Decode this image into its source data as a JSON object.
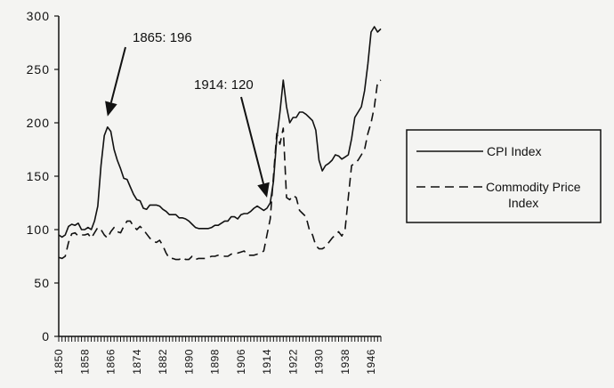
{
  "chart_data": {
    "type": "line",
    "title": "",
    "xlabel": "",
    "ylabel": "",
    "xlim": [
      1850,
      1949
    ],
    "ylim": [
      0,
      300
    ],
    "yticks": [
      0,
      50,
      100,
      150,
      200,
      250,
      300
    ],
    "xticks": [
      1850,
      1858,
      1866,
      1874,
      1882,
      1890,
      1898,
      1906,
      1914,
      1922,
      1930,
      1938,
      1946
    ],
    "grid": false,
    "legend_placement": "right",
    "series": [
      {
        "name": "CPI Index",
        "style": "solid",
        "x": [
          1850,
          1851,
          1852,
          1853,
          1854,
          1855,
          1856,
          1857,
          1858,
          1859,
          1860,
          1861,
          1862,
          1863,
          1864,
          1865,
          1866,
          1867,
          1868,
          1869,
          1870,
          1871,
          1872,
          1873,
          1874,
          1875,
          1876,
          1877,
          1878,
          1879,
          1880,
          1881,
          1882,
          1883,
          1884,
          1885,
          1886,
          1887,
          1888,
          1889,
          1890,
          1891,
          1892,
          1893,
          1894,
          1895,
          1896,
          1897,
          1898,
          1899,
          1900,
          1901,
          1902,
          1903,
          1904,
          1905,
          1906,
          1907,
          1908,
          1909,
          1910,
          1911,
          1912,
          1913,
          1914,
          1915,
          1916,
          1917,
          1918,
          1919,
          1920,
          1921,
          1922,
          1923,
          1924,
          1925,
          1926,
          1927,
          1928,
          1929,
          1930,
          1931,
          1932,
          1933,
          1934,
          1935,
          1936,
          1937,
          1938,
          1939,
          1940,
          1941,
          1942,
          1943,
          1944,
          1945,
          1946,
          1947,
          1948,
          1949
        ],
        "values": [
          95,
          93,
          95,
          103,
          105,
          104,
          106,
          100,
          100,
          102,
          100,
          108,
          122,
          160,
          188,
          196,
          192,
          175,
          165,
          157,
          148,
          147,
          140,
          133,
          128,
          127,
          120,
          119,
          123,
          123,
          123,
          122,
          119,
          117,
          114,
          114,
          114,
          111,
          111,
          110,
          108,
          105,
          102,
          101,
          101,
          101,
          101,
          102,
          104,
          104,
          106,
          108,
          108,
          112,
          112,
          110,
          114,
          115,
          115,
          117,
          120,
          122,
          120,
          118,
          120,
          125,
          145,
          185,
          210,
          240,
          215,
          200,
          205,
          205,
          210,
          210,
          208,
          205,
          202,
          193,
          165,
          155,
          160,
          162,
          165,
          170,
          169,
          166,
          168,
          170,
          185,
          205,
          210,
          215,
          230,
          255,
          285,
          290,
          285,
          288
        ]
      },
      {
        "name": "Commodity Price Index",
        "style": "dashed",
        "x": [
          1850,
          1851,
          1852,
          1853,
          1854,
          1855,
          1856,
          1857,
          1858,
          1859,
          1860,
          1861,
          1862,
          1863,
          1864,
          1865,
          1866,
          1867,
          1868,
          1869,
          1870,
          1871,
          1872,
          1873,
          1874,
          1875,
          1876,
          1877,
          1878,
          1879,
          1880,
          1881,
          1882,
          1883,
          1884,
          1885,
          1886,
          1887,
          1888,
          1889,
          1890,
          1891,
          1892,
          1893,
          1894,
          1895,
          1896,
          1897,
          1898,
          1899,
          1900,
          1901,
          1902,
          1903,
          1904,
          1905,
          1906,
          1907,
          1908,
          1909,
          1910,
          1911,
          1912,
          1913,
          1914,
          1915,
          1916,
          1917,
          1918,
          1919,
          1920,
          1921,
          1922,
          1923,
          1924,
          1925,
          1926,
          1927,
          1928,
          1929,
          1930,
          1931,
          1932,
          1933,
          1934,
          1935,
          1936,
          1937,
          1938,
          1939,
          1940,
          1941,
          1942,
          1943,
          1944,
          1945,
          1946,
          1947,
          1948,
          1949
        ],
        "values": [
          74,
          73,
          75,
          88,
          96,
          97,
          94,
          95,
          95,
          96,
          92,
          97,
          102,
          100,
          95,
          92,
          98,
          102,
          98,
          97,
          103,
          108,
          108,
          103,
          100,
          103,
          100,
          96,
          92,
          89,
          88,
          90,
          85,
          78,
          73,
          73,
          72,
          72,
          74,
          72,
          72,
          75,
          72,
          73,
          73,
          73,
          74,
          75,
          75,
          76,
          76,
          75,
          75,
          77,
          78,
          78,
          79,
          80,
          76,
          76,
          76,
          77,
          78,
          80,
          95,
          110,
          150,
          190,
          180,
          195,
          130,
          128,
          132,
          130,
          118,
          115,
          112,
          100,
          95,
          85,
          82,
          82,
          84,
          88,
          92,
          95,
          98,
          94,
          100,
          130,
          160,
          162,
          165,
          170,
          175,
          190,
          200,
          215,
          238,
          240
        ]
      }
    ],
    "annotations": [
      {
        "text": "1865:  196",
        "x": 1865,
        "y": 196
      },
      {
        "text": "1914:  120",
        "x": 1914,
        "y": 120
      }
    ]
  }
}
